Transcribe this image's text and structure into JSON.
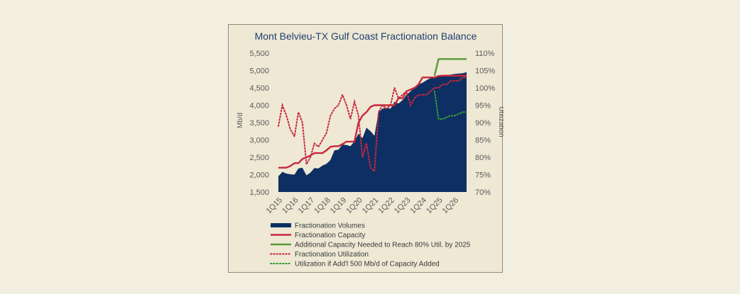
{
  "chart_data": {
    "type": "area",
    "title": "Mont Belvieu-TX Gulf Coast Fractionation Balance",
    "ylabel": "Mb/d",
    "y2label": "Utilization",
    "ylim": [
      1500,
      5500
    ],
    "y2lim": [
      70,
      110
    ],
    "yticks": [
      "1,500",
      "2,000",
      "2,500",
      "3,000",
      "3,500",
      "4,000",
      "4,500",
      "5,000",
      "5,500"
    ],
    "y2ticks": [
      "70%",
      "75%",
      "80%",
      "85%",
      "90%",
      "95%",
      "100%",
      "105%",
      "110%"
    ],
    "xticks": [
      "1Q15",
      "1Q16",
      "1Q17",
      "1Q18",
      "1Q19",
      "1Q20",
      "1Q21",
      "1Q22",
      "1Q23",
      "1Q24",
      "1Q25",
      "1Q26"
    ],
    "x_start": "1Q15",
    "x_end": "4Q26",
    "colors": {
      "volumes": "#0e2f63",
      "capacity": "#c8283c",
      "additional": "#5a9a3a",
      "utilization": "#c8283c",
      "util_added": "#3a9a3a"
    },
    "series": [
      {
        "name": "Fractionation Volumes",
        "kind": "area",
        "values": [
          1950,
          2080,
          2030,
          2010,
          2000,
          2180,
          2200,
          1980,
          2060,
          2190,
          2180,
          2260,
          2310,
          2420,
          2700,
          2720,
          2870,
          2850,
          2820,
          2960,
          3180,
          3050,
          3350,
          3250,
          3120,
          3800,
          3900,
          3930,
          3900,
          4100,
          4050,
          4150,
          4300,
          4400,
          4520,
          4600,
          4650,
          4720,
          4780,
          4800,
          4840,
          4860,
          4870,
          4880,
          4900,
          4910,
          4920,
          4950
        ]
      },
      {
        "name": "Fractionation Capacity",
        "kind": "line",
        "values": [
          2200,
          2200,
          2200,
          2250,
          2330,
          2330,
          2450,
          2500,
          2550,
          2620,
          2620,
          2620,
          2700,
          2800,
          2820,
          2820,
          2880,
          2950,
          2950,
          2950,
          3500,
          3700,
          3800,
          3950,
          4000,
          4000,
          4000,
          4000,
          4000,
          4000,
          4200,
          4200,
          4400,
          4450,
          4500,
          4600,
          4800,
          4800,
          4800,
          4800,
          4840,
          4850,
          4850,
          4850,
          4850,
          4850,
          4850,
          4850
        ]
      },
      {
        "name": "Additional Capacity Needed to Reach 80% Util. by 2025",
        "kind": "line",
        "x_start_index": 39,
        "values": [
          4850,
          5330,
          5330,
          5330,
          5330,
          5330,
          5330,
          5330,
          5330
        ]
      },
      {
        "name": "Fractionation Utilization",
        "kind": "dotted",
        "axis": "right",
        "values": [
          89,
          95,
          92,
          88,
          86,
          93,
          90,
          78,
          80,
          84,
          83,
          85,
          87,
          92,
          94,
          95,
          98,
          95,
          91,
          96,
          92,
          80,
          84,
          77,
          76,
          93,
          95,
          94,
          95,
          100,
          97,
          98,
          99,
          95,
          97,
          98,
          98,
          98,
          99,
          100,
          100,
          101,
          101,
          102,
          102,
          102,
          103,
          103
        ]
      },
      {
        "name": "Utilization if Add'l 500 Mb/d of Capacity Added",
        "kind": "dotted",
        "axis": "right",
        "x_start_index": 39,
        "values": [
          99,
          91,
          91,
          91.5,
          92,
          92,
          92.5,
          93,
          93
        ]
      }
    ],
    "legend": [
      {
        "label": "Fractionation Volumes",
        "style": "area",
        "color": "#0e2f63"
      },
      {
        "label": "Fractionation Capacity",
        "style": "line",
        "color": "#c8283c"
      },
      {
        "label": "Additional Capacity Needed to Reach 80% Util. by 2025",
        "style": "line",
        "color": "#5a9a3a"
      },
      {
        "label": "Fractionation Utilization",
        "style": "dotted",
        "color": "#c8283c"
      },
      {
        "label": "Utilization if Add'l 500 Mb/d of Capacity Added",
        "style": "dotted",
        "color": "#3a9a3a"
      }
    ],
    "legend_position": "bottom",
    "grid": false
  }
}
